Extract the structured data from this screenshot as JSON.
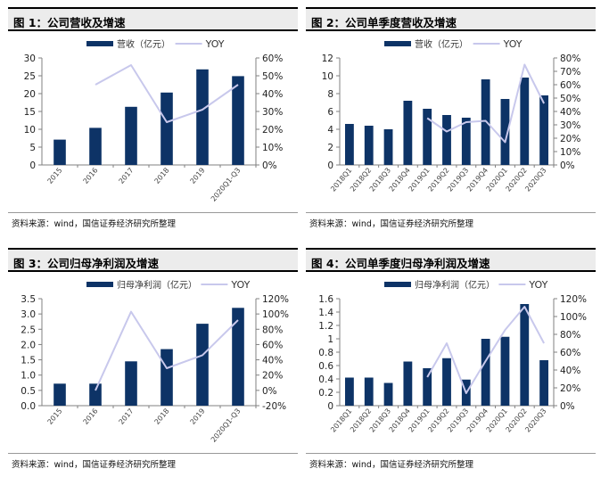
{
  "figures": [
    {
      "heading": "图 1：公司营收及增速",
      "source": "资料来源：wind，国信证券经济研究所整理"
    },
    {
      "heading": "图 2：公司单季度营收及增速",
      "source": "资料来源：wind，国信证券经济研究所整理"
    },
    {
      "heading": "图 3：公司归母净利润及增速",
      "source": "资料来源：wind，国信证券经济研究所整理"
    },
    {
      "heading": "图 4：公司单季度归母净利润及增速",
      "source": "资料来源：wind，国信证券经济研究所整理"
    }
  ],
  "colors": {
    "bar": "#0d3366",
    "line": "#c8c8ec",
    "axis": "#808080"
  },
  "chart_data": [
    {
      "type": "bar",
      "categories": [
        "2015",
        "2016",
        "2017",
        "2018",
        "2019",
        "2020Q1-Q3"
      ],
      "series": [
        {
          "name": "营收（亿元）",
          "axis": "left",
          "values": [
            7.1,
            10.4,
            16.3,
            20.3,
            26.8,
            24.9
          ]
        },
        {
          "name": "YOY",
          "axis": "right",
          "kind": "line",
          "values": [
            null,
            0.45,
            0.56,
            0.24,
            0.31,
            0.45
          ]
        }
      ],
      "yleft": {
        "min": 0,
        "max": 30,
        "ticks": [
          "0",
          "5",
          "10",
          "15",
          "20",
          "25",
          "30"
        ]
      },
      "yright": {
        "min": 0,
        "max": 0.6,
        "ticks": [
          "0%",
          "10%",
          "20%",
          "30%",
          "40%",
          "50%",
          "60%"
        ]
      }
    },
    {
      "type": "bar",
      "categories": [
        "2018Q1",
        "2018Q2",
        "2018Q3",
        "2018Q4",
        "2019Q1",
        "2019Q2",
        "2019Q3",
        "2019Q4",
        "2020Q1",
        "2020Q2",
        "2020Q3"
      ],
      "series": [
        {
          "name": "营收（亿元）",
          "axis": "left",
          "values": [
            4.6,
            4.4,
            4.0,
            7.2,
            6.3,
            5.6,
            5.3,
            9.6,
            7.4,
            9.8,
            7.8
          ]
        },
        {
          "name": "YOY",
          "axis": "right",
          "kind": "line",
          "values": [
            null,
            null,
            null,
            null,
            0.35,
            0.25,
            0.32,
            0.33,
            0.17,
            0.75,
            0.46
          ]
        }
      ],
      "yleft": {
        "min": 0,
        "max": 12,
        "ticks": [
          "0",
          "2",
          "4",
          "6",
          "8",
          "10",
          "12"
        ]
      },
      "yright": {
        "min": 0,
        "max": 0.8,
        "ticks": [
          "0%",
          "10%",
          "20%",
          "30%",
          "40%",
          "50%",
          "60%",
          "70%",
          "80%"
        ]
      }
    },
    {
      "type": "bar",
      "categories": [
        "2015",
        "2016",
        "2017",
        "2018",
        "2019",
        "2020Q1-Q3"
      ],
      "series": [
        {
          "name": "归母净利润（亿元）",
          "axis": "left",
          "values": [
            0.72,
            0.72,
            1.45,
            1.85,
            2.68,
            3.2
          ]
        },
        {
          "name": "YOY",
          "axis": "right",
          "kind": "line",
          "values": [
            null,
            0.0,
            1.03,
            0.29,
            0.46,
            0.92
          ]
        }
      ],
      "yleft": {
        "min": 0,
        "max": 3.5,
        "ticks": [
          "0.0",
          "0.5",
          "1.0",
          "1.5",
          "2.0",
          "2.5",
          "3.0",
          "3.5"
        ]
      },
      "yright": {
        "min": -0.2,
        "max": 1.2,
        "ticks": [
          "-20%",
          "0%",
          "20%",
          "40%",
          "60%",
          "80%",
          "100%",
          "120%"
        ]
      }
    },
    {
      "type": "bar",
      "categories": [
        "2018Q1",
        "2018Q2",
        "2018Q3",
        "2018Q4",
        "2019Q1",
        "2019Q2",
        "2019Q3",
        "2019Q4",
        "2020Q1",
        "2020Q2",
        "2020Q3"
      ],
      "series": [
        {
          "name": "归母净利润（亿元）",
          "axis": "left",
          "values": [
            0.42,
            0.42,
            0.34,
            0.66,
            0.56,
            0.71,
            0.39,
            1.0,
            1.03,
            1.52,
            0.68
          ]
        },
        {
          "name": "YOY",
          "axis": "right",
          "kind": "line",
          "values": [
            null,
            null,
            null,
            null,
            0.32,
            0.7,
            0.14,
            0.5,
            0.85,
            1.11,
            0.7
          ]
        }
      ],
      "yleft": {
        "min": 0,
        "max": 1.6,
        "ticks": [
          "0",
          "0.2",
          "0.4",
          "0.6",
          "0.8",
          "1",
          "1.2",
          "1.4",
          "1.6"
        ]
      },
      "yright": {
        "min": 0,
        "max": 1.2,
        "ticks": [
          "0%",
          "20%",
          "40%",
          "60%",
          "80%",
          "100%",
          "120%"
        ]
      }
    }
  ]
}
